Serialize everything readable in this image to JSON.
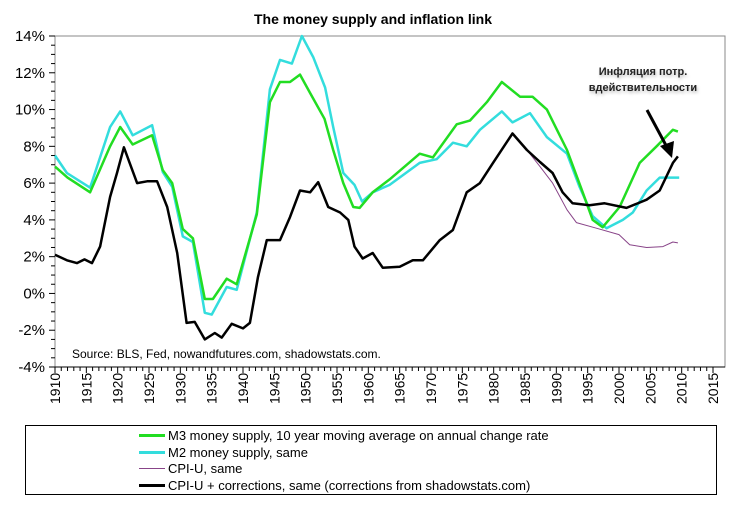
{
  "chart_data": {
    "type": "line",
    "title": "The money supply and inflation link",
    "annotation_source": "Source: BLS, Fed, nowandfutures.com, shadowstats.com.",
    "annotation_callout": [
      "Инфляция потр.",
      "вдействительности"
    ],
    "xlabel": "",
    "ylabel": "",
    "xlim": [
      1910,
      2015
    ],
    "ylim": [
      -4,
      14
    ],
    "x_ticks": [
      "1910",
      "1915",
      "1920",
      "1925",
      "1930",
      "1935",
      "1940",
      "1945",
      "1950",
      "1955",
      "1960",
      "1965",
      "1970",
      "1975",
      "1980",
      "1985",
      "1990",
      "1995",
      "2000",
      "2005",
      "2010",
      "2015"
    ],
    "y_ticks": [
      "14%",
      "12%",
      "10%",
      "8%",
      "6%",
      "4%",
      "2%",
      "0%",
      "-2%",
      "-4%"
    ],
    "grid": false,
    "legend_position": "bottom",
    "series": [
      {
        "name": "M3 money supply, 10 year moving average on annual change rate",
        "color": "#22dd22",
        "x": [
          1910,
          1912,
          1915.6,
          1918.8,
          1920.4,
          1922.4,
          1925.5,
          1927.2,
          1928.7,
          1930.4,
          1932,
          1933.9,
          1935.2,
          1937.4,
          1939,
          1942.2,
          1944.3,
          1945.9,
          1947.5,
          1949.1,
          1950.7,
          1953,
          1954.4,
          1956,
          1957.6,
          1958.6,
          1960.7,
          1963.4,
          1968.2,
          1970.3,
          1974.1,
          1976.2,
          1978.9,
          1981.3,
          1984.2,
          1986.2,
          1988.5,
          1991.7,
          1994.2,
          1995.8,
          1997.4,
          2000.1,
          2003.3,
          2006,
          2008.6,
          2009.4
        ],
        "y": [
          6.9,
          6.3,
          5.5,
          8.0,
          9.05,
          8.1,
          8.6,
          6.7,
          6.0,
          3.5,
          3.0,
          -0.3,
          -0.3,
          0.8,
          0.5,
          4.3,
          10.4,
          11.5,
          11.5,
          11.9,
          10.9,
          9.5,
          7.8,
          6.0,
          4.7,
          4.65,
          5.5,
          6.2,
          7.6,
          7.4,
          9.2,
          9.4,
          10.4,
          11.5,
          10.7,
          10.7,
          10.0,
          7.8,
          5.5,
          4.0,
          3.6,
          4.7,
          7.1,
          8.0,
          8.9,
          8.8
        ]
      },
      {
        "name": "M2 money supply, same",
        "color": "#33dddd",
        "x": [
          1910,
          1911.9,
          1915.6,
          1918.8,
          1920.4,
          1922.4,
          1925.5,
          1927.2,
          1928.7,
          1930.4,
          1932,
          1933.9,
          1935,
          1937.4,
          1939,
          1942.2,
          1944.3,
          1945.9,
          1947.8,
          1949.4,
          1951.2,
          1953.1,
          1954.4,
          1956,
          1957.8,
          1959,
          1960.7,
          1963.4,
          1968.2,
          1970.9,
          1973.5,
          1975.7,
          1977.8,
          1981.3,
          1983,
          1985.8,
          1988.5,
          1991.7,
          1993.7,
          1995.8,
          1998,
          2000.6,
          2002.2,
          2004.4,
          2006.5,
          2008.6,
          2009.6
        ],
        "y": [
          7.5,
          6.55,
          5.75,
          9.05,
          9.9,
          8.6,
          9.15,
          6.6,
          5.8,
          3.1,
          2.8,
          -1.05,
          -1.15,
          0.35,
          0.2,
          4.4,
          11.1,
          12.7,
          12.5,
          14.0,
          12.85,
          11.2,
          9.05,
          6.55,
          5.9,
          5.0,
          5.5,
          5.9,
          7.1,
          7.3,
          8.2,
          8.0,
          8.9,
          9.9,
          9.3,
          9.8,
          8.5,
          7.6,
          5.8,
          4.2,
          3.55,
          4.0,
          4.4,
          5.6,
          6.3,
          6.3,
          6.3
        ]
      },
      {
        "name": "CPI-U, same",
        "color": "#884488",
        "x": [
          1983,
          1985.3,
          1987.4,
          1989.4,
          1991.7,
          1993.2,
          1996.4,
          2000,
          2001.7,
          2004.4,
          2007,
          2008.6,
          2009.4
        ],
        "y": [
          8.7,
          7.8,
          6.9,
          6.0,
          4.55,
          3.85,
          3.55,
          3.2,
          2.65,
          2.5,
          2.55,
          2.8,
          2.75
        ]
      },
      {
        "name": "CPI-U + corrections, same (corrections from shadowstats.com)",
        "color": "#000000",
        "x": [
          1910,
          1911.9,
          1913.5,
          1914.7,
          1915.9,
          1917.2,
          1918.8,
          1919.9,
          1921,
          1923.1,
          1924.7,
          1926.3,
          1927.9,
          1929.5,
          1931,
          1932.3,
          1933.9,
          1935.5,
          1936.6,
          1938.2,
          1940,
          1941.1,
          1942.4,
          1943.8,
          1945.9,
          1947.5,
          1949.1,
          1950.7,
          1952,
          1953.6,
          1955.5,
          1956.8,
          1957.8,
          1959.1,
          1960.7,
          1962.3,
          1965,
          1967.1,
          1968.7,
          1971.4,
          1973.5,
          1975.7,
          1977.8,
          1979.9,
          1983,
          1985.3,
          1987.4,
          1989.4,
          1991,
          1992.6,
          1995.3,
          1997.7,
          2001.2,
          2004.4,
          2006.5,
          2008.6,
          2009.4
        ],
        "y": [
          2.1,
          1.8,
          1.65,
          1.85,
          1.65,
          2.55,
          5.25,
          6.55,
          7.95,
          6.0,
          6.1,
          6.1,
          4.7,
          2.2,
          -1.6,
          -1.55,
          -2.5,
          -2.15,
          -2.4,
          -1.65,
          -1.9,
          -1.6,
          0.9,
          2.9,
          2.9,
          4.15,
          5.6,
          5.5,
          6.05,
          4.7,
          4.4,
          4.0,
          2.55,
          1.9,
          2.2,
          1.4,
          1.45,
          1.8,
          1.8,
          2.9,
          3.45,
          5.5,
          6.0,
          7.1,
          8.7,
          7.8,
          7.15,
          6.55,
          5.5,
          4.9,
          4.8,
          4.9,
          4.65,
          5.1,
          5.6,
          7.1,
          7.45
        ]
      }
    ]
  }
}
